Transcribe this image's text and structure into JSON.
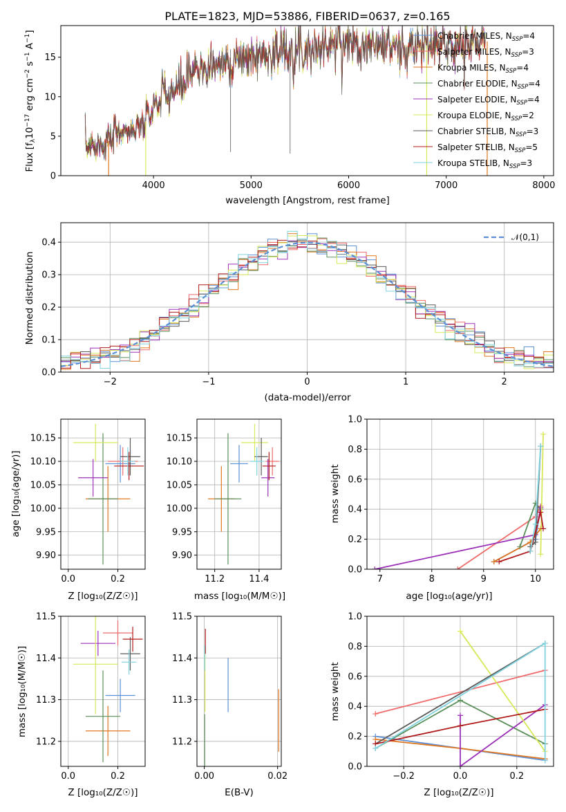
{
  "colors": {
    "Chabrier MILES": "#5b8fd6",
    "Salpeter MILES": "#f06a6a",
    "Kroupa MILES": "#e0761f",
    "Chabrier ELODIE": "#5a8f5a",
    "Salpeter ELODIE": "#9b30b8",
    "Kroupa ELODIE": "#d7e858",
    "Chabrier STELIB": "#5a5a5a",
    "Salpeter STELIB": "#b01a1a",
    "Kroupa STELIB": "#7fd3e0"
  },
  "chart_data": [
    {
      "id": "spectrum",
      "type": "line",
      "title": "PLATE=1823, MJD=53886, FIBERID=0637, z=0.165",
      "xlabel": "wavelength [Angstrom, rest frame]",
      "ylabel_main": "Flux [f",
      "ylabel_sub1": "λ",
      "ylabel_mid": "10",
      "ylabel_sup1": "−17",
      "ylabel_tail": " erg cm",
      "ylabel_sup2": "−2",
      "ylabel_tail2": " s",
      "ylabel_sup3": "−1",
      "ylabel_tail3": " A",
      "ylabel_sup4": "−1",
      "ylabel_end": "]",
      "xlim": [
        3050,
        8100
      ],
      "ylim": [
        0,
        19
      ],
      "xticks": [
        4000,
        5000,
        6000,
        7000,
        8000
      ],
      "yticks": [
        0,
        5,
        10,
        15
      ],
      "grid": false,
      "legend_position": "right",
      "legend": [
        {
          "name": "Chabrier MILES",
          "nssp": "4"
        },
        {
          "name": "Salpeter MILES",
          "nssp": "3"
        },
        {
          "name": "Kroupa MILES",
          "nssp": "4"
        },
        {
          "name": "Chabrier ELODIE",
          "nssp": "4"
        },
        {
          "name": "Salpeter ELODIE",
          "nssp": "4"
        },
        {
          "name": "Kroupa ELODIE",
          "nssp": "2"
        },
        {
          "name": "Chabrier STELIB",
          "nssp": "3"
        },
        {
          "name": "Salpeter STELIB",
          "nssp": "5"
        },
        {
          "name": "Kroupa STELIB",
          "nssp": "3"
        }
      ],
      "data_envelope": {
        "x": [
          3300,
          3400,
          3500,
          3600,
          3700,
          3800,
          3900,
          4000,
          4100,
          4200,
          4300,
          4400,
          4600,
          4800,
          5000,
          5200,
          5400,
          5600,
          5800,
          6000,
          6200,
          6400,
          6600,
          6800,
          7000,
          7200,
          7400
        ],
        "y": [
          4.2,
          3.9,
          4.0,
          5.0,
          6.0,
          5.5,
          6.5,
          8.5,
          10.0,
          10.5,
          11.5,
          13.0,
          14.0,
          14.5,
          15.0,
          15.5,
          16.0,
          16.0,
          16.5,
          17.0,
          16.5,
          16.5,
          16.0,
          16.5,
          16.5,
          16.5,
          17.0
        ]
      },
      "model_cutoffs": [
        {
          "model": "Kroupa MILES",
          "x": 3540
        },
        {
          "model": "Kroupa ELODIE",
          "x": 3920
        },
        {
          "model": "Kroupa ELODIE",
          "x": 6800
        },
        {
          "model": "Kroupa MILES",
          "x": 7420
        }
      ]
    },
    {
      "id": "residuals",
      "type": "line",
      "xlabel": "(data-model)/error",
      "ylabel": "Normed distribution",
      "xlim": [
        -2.5,
        2.5
      ],
      "ylim": [
        0,
        0.46
      ],
      "xticks": [
        -2,
        -1,
        0,
        1,
        2
      ],
      "yticks": [
        0.0,
        0.1,
        0.2,
        0.3,
        0.4
      ],
      "grid": true,
      "legend_position": "top-right",
      "legend_label": "𝒩(0,1)",
      "gaussian": {
        "mean": 0,
        "sigma": 1
      }
    },
    {
      "id": "age-Z",
      "type": "scatter",
      "xlabel": "Z [log₁₀(Z/Z☉)]",
      "ylabel": "age  [log₁₀(age/yr)]",
      "xlim": [
        -0.03,
        0.31
      ],
      "ylim": [
        9.87,
        10.19
      ],
      "xticks": [
        0.0,
        0.2
      ],
      "yticks": [
        9.9,
        9.95,
        10.0,
        10.05,
        10.1,
        10.15
      ],
      "grid": true,
      "points": [
        {
          "model": "Chabrier MILES",
          "x": 0.21,
          "xerr": 0.06,
          "y": 10.095,
          "yerr": 0.04
        },
        {
          "model": "Salpeter MILES",
          "x": 0.22,
          "xerr": 0.06,
          "y": 10.1,
          "yerr": 0.03
        },
        {
          "model": "Kroupa MILES",
          "x": 0.16,
          "xerr": 0.09,
          "y": 10.02,
          "yerr": 0.07
        },
        {
          "model": "Chabrier ELODIE",
          "x": 0.14,
          "xerr": 0.06,
          "y": 10.02,
          "yerr": 0.14
        },
        {
          "model": "Salpeter ELODIE",
          "x": 0.1,
          "xerr": 0.06,
          "y": 10.065,
          "yerr": 0.04
        },
        {
          "model": "Kroupa ELODIE",
          "x": 0.11,
          "xerr": 0.09,
          "y": 10.14,
          "yerr": 0.04
        },
        {
          "model": "Chabrier STELIB",
          "x": 0.25,
          "xerr": 0.04,
          "y": 10.11,
          "yerr": 0.04
        },
        {
          "model": "Salpeter STELIB",
          "x": 0.245,
          "xerr": 0.06,
          "y": 10.09,
          "yerr": 0.03
        },
        {
          "model": "Kroupa STELIB",
          "x": 0.24,
          "xerr": 0.03,
          "y": 10.1,
          "yerr": 0.03
        }
      ]
    },
    {
      "id": "age-mass",
      "type": "scatter",
      "xlabel": "mass [log₁₀(M/M☉)]",
      "ylabel": "",
      "xlim": [
        11.12,
        11.5
      ],
      "ylim": [
        9.87,
        10.19
      ],
      "xticks": [
        11.2,
        11.4
      ],
      "yticks": [
        9.9,
        9.95,
        10.0,
        10.05,
        10.1,
        10.15
      ],
      "grid": true,
      "points": [
        {
          "model": "Chabrier MILES",
          "x": 11.31,
          "xerr": 0.04,
          "y": 10.095,
          "yerr": 0.04
        },
        {
          "model": "Salpeter MILES",
          "x": 11.46,
          "xerr": 0.03,
          "y": 10.1,
          "yerr": 0.03
        },
        {
          "model": "Kroupa MILES",
          "x": 11.23,
          "xerr": 0.06,
          "y": 10.02,
          "yerr": 0.07
        },
        {
          "model": "Chabrier ELODIE",
          "x": 11.26,
          "xerr": 0.06,
          "y": 10.02,
          "yerr": 0.14
        },
        {
          "model": "Salpeter ELODIE",
          "x": 11.44,
          "xerr": 0.03,
          "y": 10.065,
          "yerr": 0.04
        },
        {
          "model": "Kroupa ELODIE",
          "x": 11.38,
          "xerr": 0.06,
          "y": 10.14,
          "yerr": 0.04
        },
        {
          "model": "Chabrier STELIB",
          "x": 11.41,
          "xerr": 0.03,
          "y": 10.11,
          "yerr": 0.04
        },
        {
          "model": "Salpeter STELIB",
          "x": 11.445,
          "xerr": 0.03,
          "y": 10.09,
          "yerr": 0.03
        },
        {
          "model": "Kroupa STELIB",
          "x": 11.39,
          "xerr": 0.03,
          "y": 10.1,
          "yerr": 0.03
        }
      ]
    },
    {
      "id": "weight-age",
      "type": "line",
      "xlabel": "age  [log₁₀(age/yr)]",
      "ylabel": "mass weight",
      "xlim": [
        6.75,
        10.35
      ],
      "ylim": [
        0,
        1.0
      ],
      "xticks": [
        7,
        8,
        9,
        10
      ],
      "yticks": [
        0.0,
        0.2,
        0.4,
        0.6,
        0.8,
        1.0
      ],
      "grid": true,
      "series": [
        {
          "model": "Chabrier MILES",
          "x": [
            9.2,
            10.0,
            10.1
          ],
          "y": [
            0.05,
            0.2,
            0.41
          ]
        },
        {
          "model": "Salpeter MILES",
          "x": [
            8.5,
            10.0,
            10.1
          ],
          "y": [
            0.0,
            0.35,
            0.42
          ]
        },
        {
          "model": "Kroupa MILES",
          "x": [
            9.2,
            9.9,
            10.1
          ],
          "y": [
            0.05,
            0.18,
            0.27
          ]
        },
        {
          "model": "Chabrier ELODIE",
          "x": [
            9.7,
            10.0,
            10.1
          ],
          "y": [
            0.15,
            0.44,
            0.4
          ]
        },
        {
          "model": "Salpeter ELODIE",
          "x": [
            6.9,
            10.0,
            10.1
          ],
          "y": [
            0.0,
            0.23,
            0.41
          ]
        },
        {
          "model": "Kroupa ELODIE",
          "x": [
            10.1,
            10.15
          ],
          "y": [
            0.1,
            0.9
          ]
        },
        {
          "model": "Chabrier STELIB",
          "x": [
            9.9,
            10.0,
            10.1
          ],
          "y": [
            0.15,
            0.18,
            0.82
          ]
        },
        {
          "model": "Salpeter STELIB",
          "x": [
            9.3,
            9.9,
            10.1,
            10.15
          ],
          "y": [
            0.05,
            0.12,
            0.38,
            0.27
          ]
        },
        {
          "model": "Kroupa STELIB",
          "x": [
            9.9,
            10.0,
            10.1
          ],
          "y": [
            0.12,
            0.3,
            0.82
          ]
        }
      ]
    },
    {
      "id": "mass-Z",
      "type": "scatter",
      "xlabel": "Z [log₁₀(Z/Z☉)]",
      "ylabel": "mass [log₁₀(M/M☉)]",
      "xlim": [
        -0.03,
        0.31
      ],
      "ylim": [
        11.14,
        11.5
      ],
      "xticks": [
        0.0,
        0.2
      ],
      "yticks": [
        11.2,
        11.3,
        11.4,
        11.5
      ],
      "grid": true,
      "points": [
        {
          "model": "Chabrier MILES",
          "x": 0.21,
          "xerr": 0.06,
          "y": 11.31,
          "yerr": 0.04
        },
        {
          "model": "Salpeter MILES",
          "x": 0.2,
          "xerr": 0.06,
          "y": 11.46,
          "yerr": 0.03
        },
        {
          "model": "Kroupa MILES",
          "x": 0.16,
          "xerr": 0.09,
          "y": 11.225,
          "yerr": 0.06
        },
        {
          "model": "Chabrier ELODIE",
          "x": 0.14,
          "xerr": 0.07,
          "y": 11.26,
          "yerr": 0.11
        },
        {
          "model": "Salpeter ELODIE",
          "x": 0.12,
          "xerr": 0.07,
          "y": 11.435,
          "yerr": 0.03
        },
        {
          "model": "Kroupa ELODIE",
          "x": 0.11,
          "xerr": 0.09,
          "y": 11.385,
          "yerr": 0.12
        },
        {
          "model": "Chabrier STELIB",
          "x": 0.25,
          "xerr": 0.04,
          "y": 11.41,
          "yerr": 0.04
        },
        {
          "model": "Salpeter STELIB",
          "x": 0.26,
          "xerr": 0.04,
          "y": 11.445,
          "yerr": 0.03
        },
        {
          "model": "Kroupa STELIB",
          "x": 0.245,
          "xerr": 0.03,
          "y": 11.39,
          "yerr": 0.03
        }
      ]
    },
    {
      "id": "mass-EBV",
      "type": "scatter",
      "xlabel": "E(B-V)",
      "ylabel": "",
      "xlim": [
        -0.002,
        0.021
      ],
      "ylim": [
        11.14,
        11.5
      ],
      "xticks": [
        0.0,
        0.02
      ],
      "yticks": [
        11.2,
        11.3,
        11.4,
        11.5
      ],
      "grid": true,
      "points": [
        {
          "model": "Chabrier MILES",
          "x": 0.0065,
          "y": 11.335,
          "yerr": 0.065
        },
        {
          "model": "Kroupa MILES",
          "x": 0.0203,
          "y": 11.25,
          "yerr": 0.075
        },
        {
          "model": "Chabrier ELODIE",
          "x": 0.0001,
          "y": 11.2,
          "yerr": 0.065
        },
        {
          "model": "Kroupa ELODIE",
          "x": 0.0002,
          "y": 11.35,
          "yerr": 0.08
        },
        {
          "model": "Salpeter STELIB",
          "x": 0.0003,
          "y": 11.44,
          "yerr": 0.03
        },
        {
          "model": "Kroupa STELIB",
          "x": 0.0001,
          "y": 11.4,
          "yerr": 0.03
        }
      ]
    },
    {
      "id": "weight-Z",
      "type": "line",
      "xlabel": "Z [log₁₀(Z/Z☉)]",
      "ylabel": "mass weight",
      "xlim": [
        -0.33,
        0.33
      ],
      "ylim": [
        0,
        1.0
      ],
      "xticks": [
        -0.2,
        0.0,
        0.2
      ],
      "yticks": [
        0.0,
        0.2,
        0.4,
        0.6,
        0.8,
        1.0
      ],
      "grid": true,
      "series": [
        {
          "model": "Chabrier MILES",
          "x": [
            -0.3,
            0.3
          ],
          "y": [
            0.2,
            0.04
          ]
        },
        {
          "model": "Salpeter MILES",
          "x": [
            -0.3,
            0.3
          ],
          "y": [
            0.35,
            0.64
          ]
        },
        {
          "model": "Kroupa MILES",
          "x": [
            -0.3,
            0.0,
            0.3
          ],
          "y": [
            0.18,
            0.12,
            0.05
          ]
        },
        {
          "model": "Chabrier ELODIE",
          "x": [
            -0.3,
            0.0,
            0.3
          ],
          "y": [
            0.12,
            0.44,
            0.15
          ]
        },
        {
          "model": "Salpeter ELODIE",
          "x": [
            0.0,
            0.0,
            0.3
          ],
          "y": [
            0.34,
            0.0,
            0.41
          ]
        },
        {
          "model": "Kroupa ELODIE",
          "x": [
            0.0,
            0.3
          ],
          "y": [
            0.9,
            0.1
          ]
        },
        {
          "model": "Chabrier STELIB",
          "x": [
            -0.3,
            0.3
          ],
          "y": [
            0.15,
            0.82
          ]
        },
        {
          "model": "Salpeter STELIB",
          "x": [
            -0.3,
            0.0,
            0.3
          ],
          "y": [
            0.15,
            0.27,
            0.38
          ]
        },
        {
          "model": "Kroupa STELIB",
          "x": [
            -0.3,
            0.3,
            0.3
          ],
          "y": [
            0.12,
            0.82,
            0.04
          ]
        }
      ]
    }
  ]
}
